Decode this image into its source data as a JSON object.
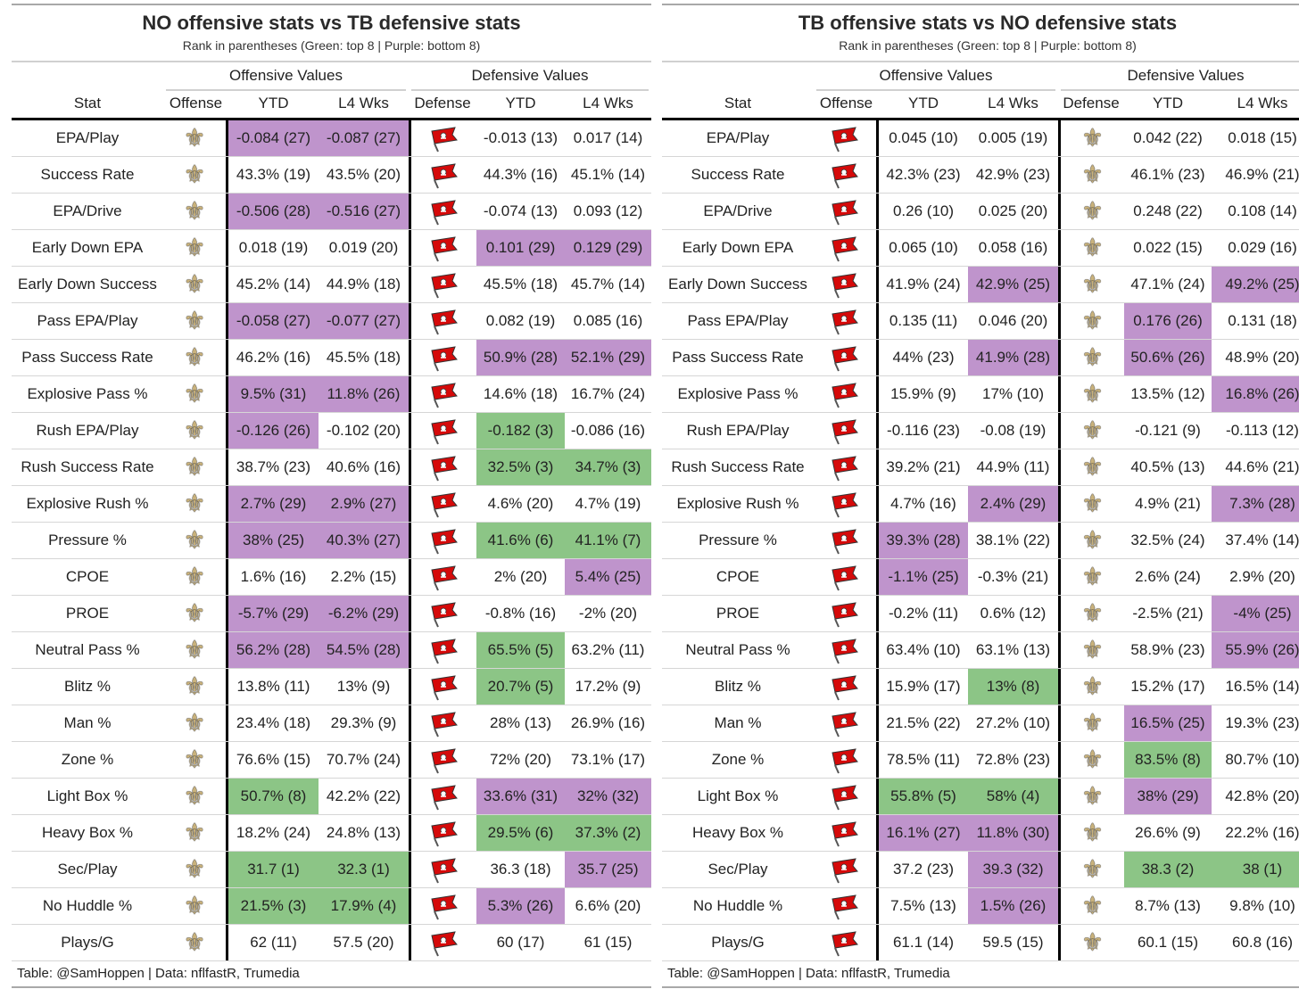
{
  "colors": {
    "top8": "#8cc586",
    "bottom8": "#bf94cc",
    "saints_gold": "#c9b27c",
    "bucs_red": "#d50a0a"
  },
  "columns": {
    "stat": "Stat",
    "offense": "Offense",
    "ytd": "YTD",
    "l4": "L4 Wks",
    "defense": "Defense",
    "offensive_values": "Offensive Values",
    "defensive_values": "Defensive Values"
  },
  "tables": [
    {
      "title": "NO offensive stats vs TB defensive stats",
      "subtitle": "Rank in parentheses (Green: top 8 | Purple: bottom 8)",
      "offense_icon": "saints-fleur-de-lis-icon",
      "defense_icon": "buccaneers-flag-icon",
      "footer": "Table: @SamHoppen | Data: nflfastR, Trumedia",
      "rows": [
        {
          "stat": "EPA/Play",
          "cells": [
            [
              "-0.084 (27)",
              "p"
            ],
            [
              "-0.087 (27)",
              "p"
            ],
            [
              "-0.013 (13)",
              ""
            ],
            [
              "0.017 (14)",
              ""
            ]
          ]
        },
        {
          "stat": "Success Rate",
          "cells": [
            [
              "43.3% (19)",
              ""
            ],
            [
              "43.5% (20)",
              ""
            ],
            [
              "44.3% (16)",
              ""
            ],
            [
              "45.1% (14)",
              ""
            ]
          ]
        },
        {
          "stat": "EPA/Drive",
          "cells": [
            [
              "-0.506 (28)",
              "p"
            ],
            [
              "-0.516 (27)",
              "p"
            ],
            [
              "-0.074 (13)",
              ""
            ],
            [
              "0.093 (12)",
              ""
            ]
          ]
        },
        {
          "stat": "Early Down EPA",
          "cells": [
            [
              "0.018 (19)",
              ""
            ],
            [
              "0.019 (20)",
              ""
            ],
            [
              "0.101 (29)",
              "p"
            ],
            [
              "0.129 (29)",
              "p"
            ]
          ]
        },
        {
          "stat": "Early Down Success",
          "cells": [
            [
              "45.2% (14)",
              ""
            ],
            [
              "44.9% (18)",
              ""
            ],
            [
              "45.5% (18)",
              ""
            ],
            [
              "45.7% (14)",
              ""
            ]
          ]
        },
        {
          "stat": "Pass EPA/Play",
          "cells": [
            [
              "-0.058 (27)",
              "p"
            ],
            [
              "-0.077 (27)",
              "p"
            ],
            [
              "0.082 (19)",
              ""
            ],
            [
              "0.085 (16)",
              ""
            ]
          ]
        },
        {
          "stat": "Pass Success Rate",
          "cells": [
            [
              "46.2% (16)",
              ""
            ],
            [
              "45.5% (18)",
              ""
            ],
            [
              "50.9% (28)",
              "p"
            ],
            [
              "52.1% (29)",
              "p"
            ]
          ]
        },
        {
          "stat": "Explosive Pass %",
          "cells": [
            [
              "9.5% (31)",
              "p"
            ],
            [
              "11.8% (26)",
              "p"
            ],
            [
              "14.6% (18)",
              ""
            ],
            [
              "16.7% (24)",
              ""
            ]
          ]
        },
        {
          "stat": "Rush EPA/Play",
          "cells": [
            [
              "-0.126 (26)",
              "p"
            ],
            [
              "-0.102 (20)",
              ""
            ],
            [
              "-0.182 (3)",
              "g"
            ],
            [
              "-0.086 (16)",
              ""
            ]
          ]
        },
        {
          "stat": "Rush Success Rate",
          "cells": [
            [
              "38.7% (23)",
              ""
            ],
            [
              "40.6% (16)",
              ""
            ],
            [
              "32.5% (3)",
              "g"
            ],
            [
              "34.7% (3)",
              "g"
            ]
          ]
        },
        {
          "stat": "Explosive Rush %",
          "cells": [
            [
              "2.7% (29)",
              "p"
            ],
            [
              "2.9% (27)",
              "p"
            ],
            [
              "4.6% (20)",
              ""
            ],
            [
              "4.7% (19)",
              ""
            ]
          ]
        },
        {
          "stat": "Pressure %",
          "cells": [
            [
              "38% (25)",
              "p"
            ],
            [
              "40.3% (27)",
              "p"
            ],
            [
              "41.6% (6)",
              "g"
            ],
            [
              "41.1% (7)",
              "g"
            ]
          ]
        },
        {
          "stat": "CPOE",
          "cells": [
            [
              "1.6% (16)",
              ""
            ],
            [
              "2.2% (15)",
              ""
            ],
            [
              "2% (20)",
              ""
            ],
            [
              "5.4% (25)",
              "p"
            ]
          ]
        },
        {
          "stat": "PROE",
          "cells": [
            [
              "-5.7% (29)",
              "p"
            ],
            [
              "-6.2% (29)",
              "p"
            ],
            [
              "-0.8% (16)",
              ""
            ],
            [
              "-2% (20)",
              ""
            ]
          ]
        },
        {
          "stat": "Neutral Pass %",
          "cells": [
            [
              "56.2% (28)",
              "p"
            ],
            [
              "54.5% (28)",
              "p"
            ],
            [
              "65.5% (5)",
              "g"
            ],
            [
              "63.2% (11)",
              ""
            ]
          ]
        },
        {
          "stat": "Blitz %",
          "cells": [
            [
              "13.8% (11)",
              ""
            ],
            [
              "13% (9)",
              ""
            ],
            [
              "20.7% (5)",
              "g"
            ],
            [
              "17.2% (9)",
              ""
            ]
          ]
        },
        {
          "stat": "Man %",
          "cells": [
            [
              "23.4% (18)",
              ""
            ],
            [
              "29.3% (9)",
              ""
            ],
            [
              "28% (13)",
              ""
            ],
            [
              "26.9% (16)",
              ""
            ]
          ]
        },
        {
          "stat": "Zone %",
          "cells": [
            [
              "76.6% (15)",
              ""
            ],
            [
              "70.7% (24)",
              ""
            ],
            [
              "72% (20)",
              ""
            ],
            [
              "73.1% (17)",
              ""
            ]
          ]
        },
        {
          "stat": "Light Box %",
          "cells": [
            [
              "50.7% (8)",
              "g"
            ],
            [
              "42.2% (22)",
              ""
            ],
            [
              "33.6% (31)",
              "p"
            ],
            [
              "32% (32)",
              "p"
            ]
          ]
        },
        {
          "stat": "Heavy Box %",
          "cells": [
            [
              "18.2% (24)",
              ""
            ],
            [
              "24.8% (13)",
              ""
            ],
            [
              "29.5% (6)",
              "g"
            ],
            [
              "37.3% (2)",
              "g"
            ]
          ]
        },
        {
          "stat": "Sec/Play",
          "cells": [
            [
              "31.7 (1)",
              "g"
            ],
            [
              "32.3 (1)",
              "g"
            ],
            [
              "36.3 (18)",
              ""
            ],
            [
              "35.7 (25)",
              "p"
            ]
          ]
        },
        {
          "stat": "No Huddle %",
          "cells": [
            [
              "21.5% (3)",
              "g"
            ],
            [
              "17.9% (4)",
              "g"
            ],
            [
              "5.3% (26)",
              "p"
            ],
            [
              "6.6% (20)",
              ""
            ]
          ]
        },
        {
          "stat": "Plays/G",
          "cells": [
            [
              "62 (11)",
              ""
            ],
            [
              "57.5 (20)",
              ""
            ],
            [
              "60 (17)",
              ""
            ],
            [
              "61 (15)",
              ""
            ]
          ]
        }
      ]
    },
    {
      "title": "TB offensive stats vs NO defensive stats",
      "subtitle": "Rank in parentheses (Green: top 8 | Purple: bottom 8)",
      "offense_icon": "buccaneers-flag-icon",
      "defense_icon": "saints-fleur-de-lis-icon",
      "footer": "Table: @SamHoppen | Data: nflfastR, Trumedia",
      "rows": [
        {
          "stat": "EPA/Play",
          "cells": [
            [
              "0.045 (10)",
              ""
            ],
            [
              "0.005 (19)",
              ""
            ],
            [
              "0.042 (22)",
              ""
            ],
            [
              "0.018 (15)",
              ""
            ]
          ]
        },
        {
          "stat": "Success Rate",
          "cells": [
            [
              "42.3% (23)",
              ""
            ],
            [
              "42.9% (23)",
              ""
            ],
            [
              "46.1% (23)",
              ""
            ],
            [
              "46.9% (21)",
              ""
            ]
          ]
        },
        {
          "stat": "EPA/Drive",
          "cells": [
            [
              "0.26 (10)",
              ""
            ],
            [
              "0.025 (20)",
              ""
            ],
            [
              "0.248 (22)",
              ""
            ],
            [
              "0.108 (14)",
              ""
            ]
          ]
        },
        {
          "stat": "Early Down EPA",
          "cells": [
            [
              "0.065 (10)",
              ""
            ],
            [
              "0.058 (16)",
              ""
            ],
            [
              "0.022 (15)",
              ""
            ],
            [
              "0.029 (16)",
              ""
            ]
          ]
        },
        {
          "stat": "Early Down Success",
          "cells": [
            [
              "41.9% (24)",
              ""
            ],
            [
              "42.9% (25)",
              "p"
            ],
            [
              "47.1% (24)",
              ""
            ],
            [
              "49.2% (25)",
              "p"
            ]
          ]
        },
        {
          "stat": "Pass EPA/Play",
          "cells": [
            [
              "0.135 (11)",
              ""
            ],
            [
              "0.046 (20)",
              ""
            ],
            [
              "0.176 (26)",
              "p"
            ],
            [
              "0.131 (18)",
              ""
            ]
          ]
        },
        {
          "stat": "Pass Success Rate",
          "cells": [
            [
              "44% (23)",
              ""
            ],
            [
              "41.9% (28)",
              "p"
            ],
            [
              "50.6% (26)",
              "p"
            ],
            [
              "48.9% (20)",
              ""
            ]
          ]
        },
        {
          "stat": "Explosive Pass %",
          "cells": [
            [
              "15.9% (9)",
              ""
            ],
            [
              "17% (10)",
              ""
            ],
            [
              "13.5% (12)",
              ""
            ],
            [
              "16.8% (26)",
              "p"
            ]
          ]
        },
        {
          "stat": "Rush EPA/Play",
          "cells": [
            [
              "-0.116 (23)",
              ""
            ],
            [
              "-0.08 (19)",
              ""
            ],
            [
              "-0.121 (9)",
              ""
            ],
            [
              "-0.113 (12)",
              ""
            ]
          ]
        },
        {
          "stat": "Rush Success Rate",
          "cells": [
            [
              "39.2% (21)",
              ""
            ],
            [
              "44.9% (11)",
              ""
            ],
            [
              "40.5% (13)",
              ""
            ],
            [
              "44.6% (21)",
              ""
            ]
          ]
        },
        {
          "stat": "Explosive Rush %",
          "cells": [
            [
              "4.7% (16)",
              ""
            ],
            [
              "2.4% (29)",
              "p"
            ],
            [
              "4.9% (21)",
              ""
            ],
            [
              "7.3% (28)",
              "p"
            ]
          ]
        },
        {
          "stat": "Pressure %",
          "cells": [
            [
              "39.3% (28)",
              "p"
            ],
            [
              "38.1% (22)",
              ""
            ],
            [
              "32.5% (24)",
              ""
            ],
            [
              "37.4% (14)",
              ""
            ]
          ]
        },
        {
          "stat": "CPOE",
          "cells": [
            [
              "-1.1% (25)",
              "p"
            ],
            [
              "-0.3% (21)",
              ""
            ],
            [
              "2.6% (24)",
              ""
            ],
            [
              "2.9% (20)",
              ""
            ]
          ]
        },
        {
          "stat": "PROE",
          "cells": [
            [
              "-0.2% (11)",
              ""
            ],
            [
              "0.6% (12)",
              ""
            ],
            [
              "-2.5% (21)",
              ""
            ],
            [
              "-4% (25)",
              "p"
            ]
          ]
        },
        {
          "stat": "Neutral Pass %",
          "cells": [
            [
              "63.4% (10)",
              ""
            ],
            [
              "63.1% (13)",
              ""
            ],
            [
              "58.9% (23)",
              ""
            ],
            [
              "55.9% (26)",
              "p"
            ]
          ]
        },
        {
          "stat": "Blitz %",
          "cells": [
            [
              "15.9% (17)",
              ""
            ],
            [
              "13% (8)",
              "g"
            ],
            [
              "15.2% (17)",
              ""
            ],
            [
              "16.5% (14)",
              ""
            ]
          ]
        },
        {
          "stat": "Man %",
          "cells": [
            [
              "21.5% (22)",
              ""
            ],
            [
              "27.2% (10)",
              ""
            ],
            [
              "16.5% (25)",
              "p"
            ],
            [
              "19.3% (23)",
              ""
            ]
          ]
        },
        {
          "stat": "Zone %",
          "cells": [
            [
              "78.5% (11)",
              ""
            ],
            [
              "72.8% (23)",
              ""
            ],
            [
              "83.5% (8)",
              "g"
            ],
            [
              "80.7% (10)",
              ""
            ]
          ]
        },
        {
          "stat": "Light Box %",
          "cells": [
            [
              "55.8% (5)",
              "g"
            ],
            [
              "58% (4)",
              "g"
            ],
            [
              "38% (29)",
              "p"
            ],
            [
              "42.8% (20)",
              ""
            ]
          ]
        },
        {
          "stat": "Heavy Box %",
          "cells": [
            [
              "16.1% (27)",
              "p"
            ],
            [
              "11.8% (30)",
              "p"
            ],
            [
              "26.6% (9)",
              ""
            ],
            [
              "22.2% (16)",
              ""
            ]
          ]
        },
        {
          "stat": "Sec/Play",
          "cells": [
            [
              "37.2 (23)",
              ""
            ],
            [
              "39.3 (32)",
              "p"
            ],
            [
              "38.3 (2)",
              "g"
            ],
            [
              "38 (1)",
              "g"
            ]
          ]
        },
        {
          "stat": "No Huddle %",
          "cells": [
            [
              "7.5% (13)",
              ""
            ],
            [
              "1.5% (26)",
              "p"
            ],
            [
              "8.7% (13)",
              ""
            ],
            [
              "9.8% (10)",
              ""
            ]
          ]
        },
        {
          "stat": "Plays/G",
          "cells": [
            [
              "61.1 (14)",
              ""
            ],
            [
              "59.5 (15)",
              ""
            ],
            [
              "60.1 (15)",
              ""
            ],
            [
              "60.8 (16)",
              ""
            ]
          ]
        }
      ]
    }
  ]
}
